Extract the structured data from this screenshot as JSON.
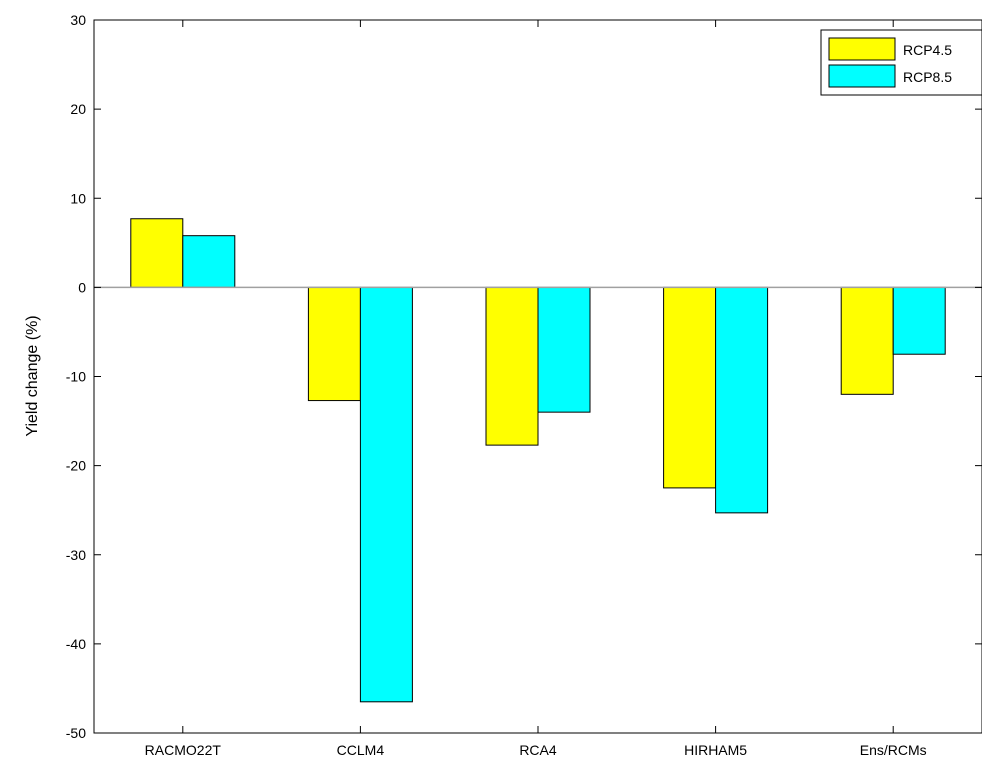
{
  "chart_data": {
    "type": "bar",
    "categories": [
      "RACMO22T",
      "CCLM4",
      "RCA4",
      "HIRHAM5",
      "Ens/RCMs"
    ],
    "series": [
      {
        "name": "RCP4.5",
        "values": [
          7.7,
          -12.7,
          -17.7,
          -22.5,
          -12.0
        ]
      },
      {
        "name": "RCP8.5",
        "values": [
          5.8,
          -46.5,
          -14.0,
          -25.3,
          -7.5
        ]
      }
    ],
    "colors": {
      "RCP4.5": "#ffff00",
      "RCP8.5": "#00ffff"
    },
    "title": "",
    "xlabel": "",
    "ylabel": "Yield change (%)",
    "ylim": [
      -50,
      30
    ],
    "yticks": [
      "30",
      "20",
      "10",
      "0",
      "-10",
      "-20",
      "-30",
      "-40",
      "-50"
    ],
    "ytick_values": [
      30,
      20,
      10,
      0,
      -10,
      -20,
      -30,
      -40,
      -50
    ],
    "grid": false,
    "legend_position": "top-right"
  }
}
